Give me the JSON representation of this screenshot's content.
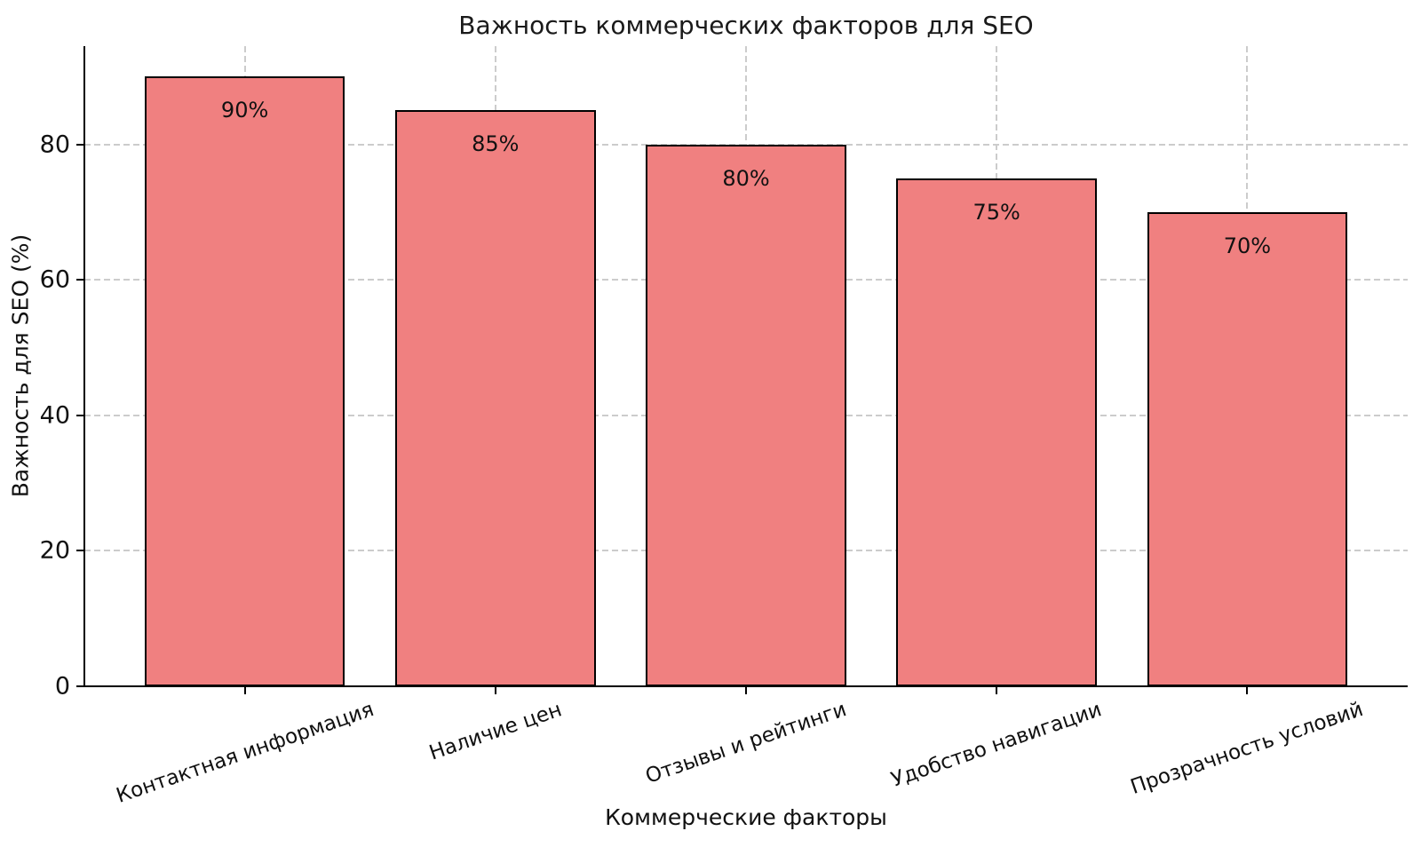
{
  "chart_data": {
    "type": "bar",
    "title": "Важность коммерческих факторов для SEO",
    "xlabel": "Коммерческие факторы",
    "ylabel": "Важность для SEO (%)",
    "categories": [
      "Контактная информация",
      "Наличие цен",
      "Отзывы и рейтинги",
      "Удобство навигации",
      "Прозрачность условий"
    ],
    "values": [
      90,
      85,
      80,
      75,
      70
    ],
    "bar_value_labels": [
      "90%",
      "85%",
      "80%",
      "75%",
      "70%"
    ],
    "yticks": [
      0,
      20,
      40,
      60,
      80
    ],
    "ylim": [
      0,
      94.5
    ],
    "bar_width_units": 0.8,
    "x_margin_units": 0.64,
    "grid": {
      "show": true,
      "style": "dashed",
      "axes": "both"
    },
    "legend": "none",
    "colors": {
      "bar_fill": "#F08080",
      "bar_edge": "#000000",
      "grid": "#cccccc",
      "spine": "#000000",
      "text": "#111111",
      "background": "#ffffff"
    }
  }
}
